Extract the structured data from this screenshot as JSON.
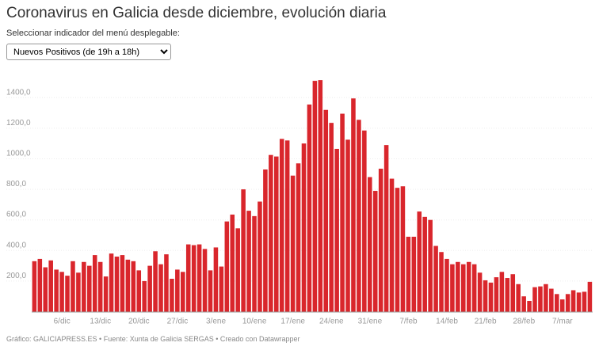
{
  "title": "Coronavirus en Galicia desde diciembre, evolución diaria",
  "instruction": "Seleccionar indicador del menú desplegable:",
  "selector": {
    "selected": "Nuevos Positivos (de 19h a 18h)"
  },
  "footer": "Gráfico: GALICIAPRESS.ES • Fuente: Xunta de Galicia SERGAS • Creado con Datawrapper",
  "chart_data": {
    "type": "bar",
    "color": "#d9262c",
    "ylim": [
      0,
      1550
    ],
    "grid": true,
    "y_ticks": [
      "200,0",
      "400,0",
      "600,0",
      "800,0",
      "1000,0",
      "1200,0",
      "1400,0"
    ],
    "y_tick_values": [
      200,
      400,
      600,
      800,
      1000,
      1200,
      1400
    ],
    "x_ticks": [
      "6/dic",
      "13/dic",
      "20/dic",
      "27/dic",
      "3/ene",
      "10/ene",
      "17/ene",
      "24/ene",
      "31/ene",
      "7/feb",
      "14/feb",
      "21/feb",
      "28/feb",
      "7/mar"
    ],
    "values": [
      330,
      345,
      290,
      335,
      275,
      260,
      235,
      330,
      255,
      325,
      300,
      370,
      325,
      230,
      380,
      360,
      370,
      340,
      330,
      270,
      200,
      300,
      395,
      310,
      375,
      215,
      275,
      260,
      440,
      435,
      440,
      410,
      270,
      420,
      295,
      590,
      635,
      545,
      800,
      660,
      625,
      720,
      930,
      1025,
      1015,
      1130,
      1120,
      890,
      970,
      1100,
      1355,
      1510,
      1515,
      1320,
      1235,
      1065,
      1295,
      1125,
      1395,
      1255,
      1185,
      880,
      790,
      935,
      1090,
      870,
      810,
      820,
      490,
      490,
      655,
      620,
      600,
      430,
      390,
      345,
      310,
      325,
      310,
      325,
      310,
      255,
      205,
      190,
      225,
      260,
      220,
      245,
      180,
      100,
      70,
      160,
      165,
      180,
      150,
      115,
      80,
      115,
      140,
      125,
      130,
      195
    ]
  }
}
